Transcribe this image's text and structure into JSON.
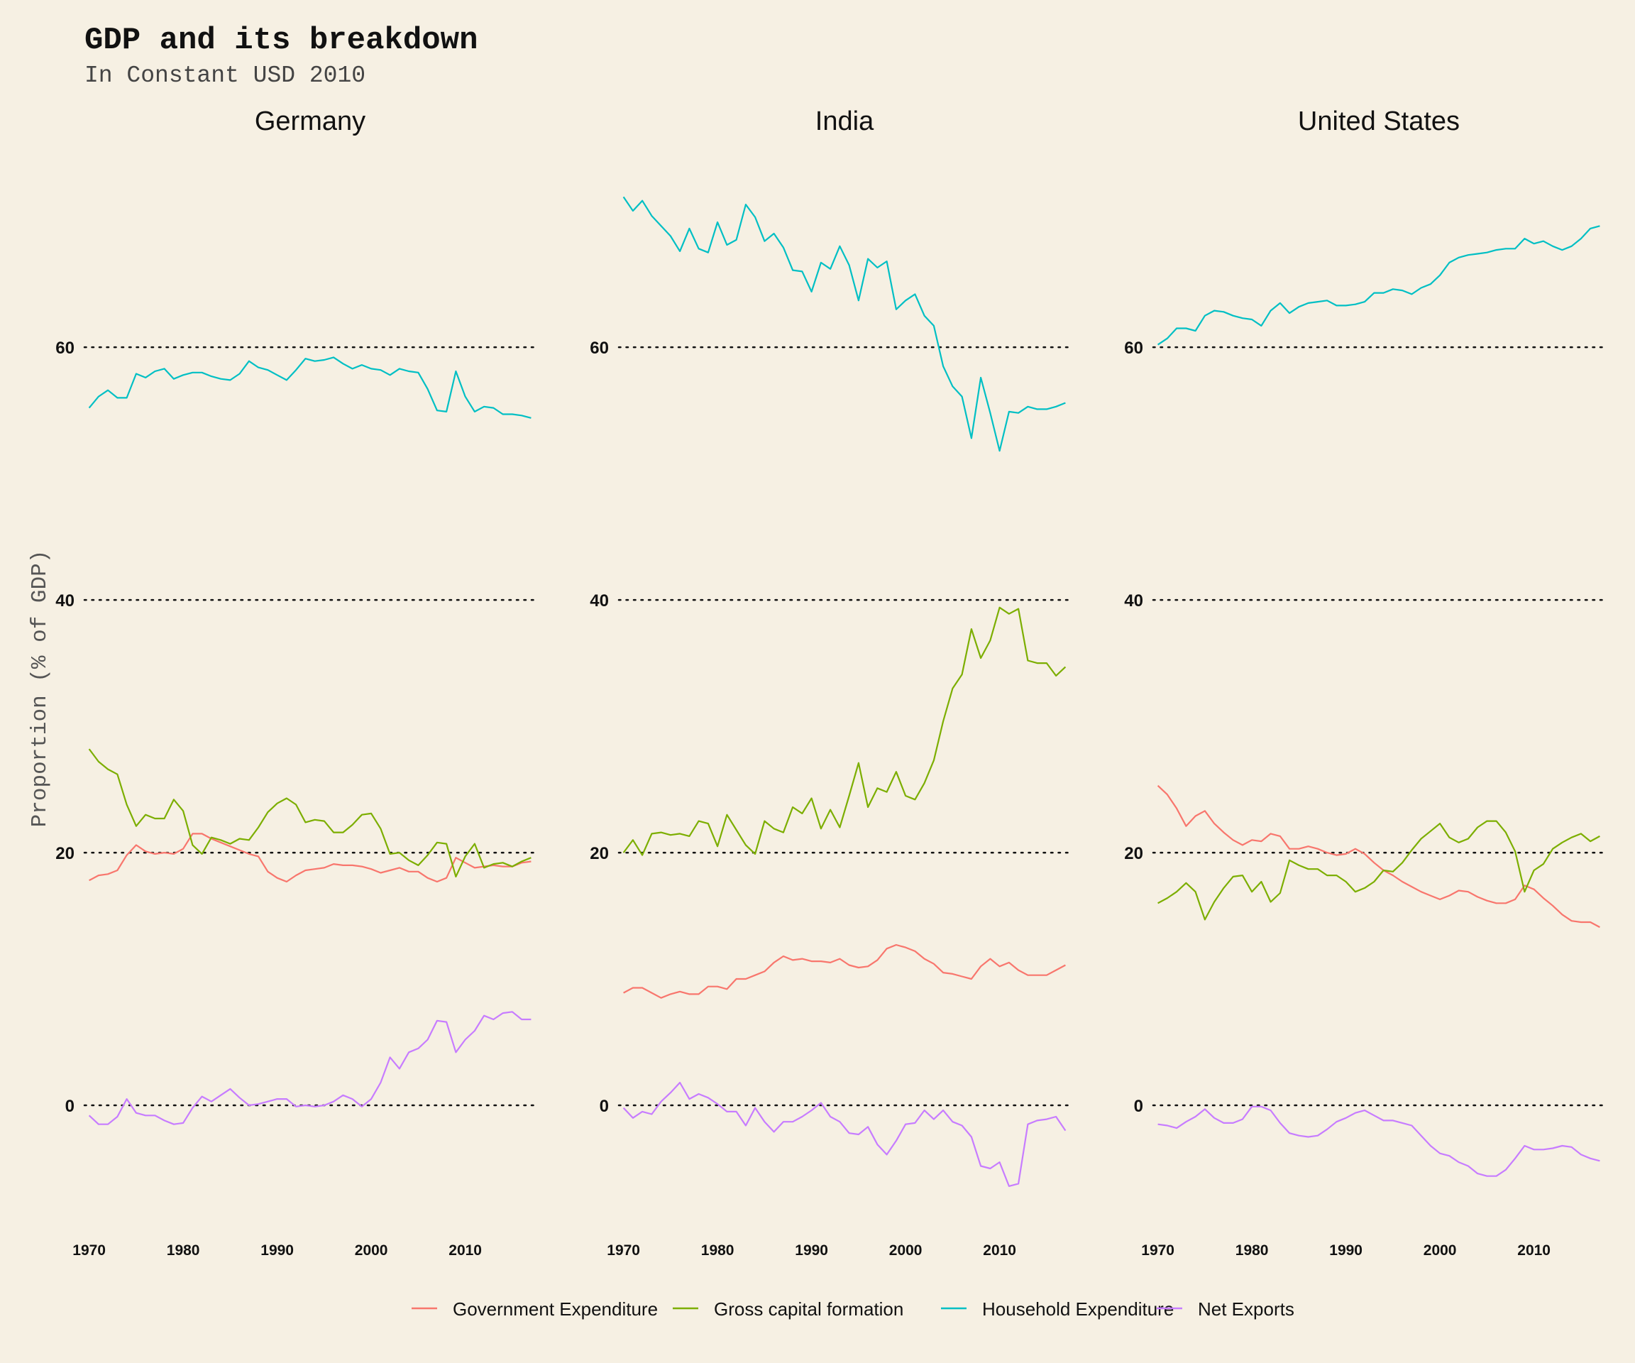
{
  "chart_data": {
    "type": "line",
    "title": "GDP and its breakdown",
    "subtitle": "In Constant USD 2010",
    "ylabel": "Proportion (% of GDP)",
    "xlabel": "",
    "ylim": [
      -10,
      74
    ],
    "xlim": [
      1969.5,
      2017.5
    ],
    "yticks": [
      0,
      20,
      40,
      60
    ],
    "xticks": [
      1970,
      1980,
      1990,
      2000,
      2010
    ],
    "grid": "dotted horizontal at y ticks",
    "legend_position": "bottom",
    "x": [
      1970,
      1971,
      1972,
      1973,
      1974,
      1975,
      1976,
      1977,
      1978,
      1979,
      1980,
      1981,
      1982,
      1983,
      1984,
      1985,
      1986,
      1987,
      1988,
      1989,
      1990,
      1991,
      1992,
      1993,
      1994,
      1995,
      1996,
      1997,
      1998,
      1999,
      2000,
      2001,
      2002,
      2003,
      2004,
      2005,
      2006,
      2007,
      2008,
      2009,
      2010,
      2011,
      2012,
      2013,
      2014,
      2015,
      2016,
      2017
    ],
    "colors": {
      "Government Expenditure": "#f8766d",
      "Gross capital formation": "#7cae00",
      "Household Expenditure": "#00bfc4",
      "Net Exports": "#c77cff"
    },
    "legend": [
      "Government Expenditure",
      "Gross capital formation",
      "Household Expenditure",
      "Net Exports"
    ],
    "panels": [
      {
        "title": "Germany",
        "series": [
          {
            "name": "Government Expenditure",
            "values": [
              17.8,
              18.2,
              18.3,
              18.6,
              19.8,
              20.6,
              20.1,
              19.9,
              20.0,
              19.9,
              20.3,
              21.5,
              21.5,
              21.1,
              20.8,
              20.5,
              20.2,
              19.9,
              19.7,
              18.5,
              18.0,
              17.7,
              18.2,
              18.6,
              18.7,
              18.8,
              19.1,
              19.0,
              19.0,
              18.9,
              18.7,
              18.4,
              18.6,
              18.8,
              18.5,
              18.5,
              18.0,
              17.7,
              18.0,
              19.6,
              19.2,
              18.8,
              18.9,
              19.0,
              18.9,
              18.9,
              19.2,
              19.3
            ]
          },
          {
            "name": "Gross capital formation",
            "values": [
              28.2,
              27.2,
              26.6,
              26.2,
              23.8,
              22.1,
              23.0,
              22.7,
              22.7,
              24.2,
              23.3,
              20.6,
              19.9,
              21.2,
              21.0,
              20.7,
              21.1,
              21.0,
              22.0,
              23.2,
              23.9,
              24.3,
              23.8,
              22.4,
              22.6,
              22.5,
              21.6,
              21.6,
              22.2,
              23.0,
              23.1,
              21.9,
              19.9,
              20.0,
              19.4,
              19.0,
              19.8,
              20.8,
              20.7,
              18.1,
              19.7,
              20.7,
              18.8,
              19.1,
              19.2,
              18.9,
              19.3,
              19.6
            ]
          },
          {
            "name": "Household Expenditure",
            "values": [
              55.2,
              56.1,
              56.6,
              56.0,
              56.0,
              57.9,
              57.6,
              58.1,
              58.3,
              57.5,
              57.8,
              58.0,
              58.0,
              57.7,
              57.5,
              57.4,
              57.9,
              58.9,
              58.4,
              58.2,
              57.8,
              57.4,
              58.2,
              59.1,
              58.9,
              59.0,
              59.2,
              58.7,
              58.3,
              58.6,
              58.3,
              58.2,
              57.8,
              58.3,
              58.1,
              58.0,
              56.7,
              55.0,
              54.9,
              58.1,
              56.1,
              54.9,
              55.3,
              55.2,
              54.7,
              54.7,
              54.6,
              54.4
            ]
          },
          {
            "name": "Net Exports",
            "values": [
              -0.8,
              -1.5,
              -1.5,
              -0.9,
              0.5,
              -0.6,
              -0.8,
              -0.8,
              -1.2,
              -1.5,
              -1.4,
              -0.2,
              0.7,
              0.3,
              0.8,
              1.3,
              0.6,
              0.0,
              0.1,
              0.3,
              0.5,
              0.5,
              -0.1,
              0.0,
              -0.1,
              0.0,
              0.3,
              0.8,
              0.5,
              -0.1,
              0.5,
              1.8,
              3.8,
              2.9,
              4.2,
              4.5,
              5.2,
              6.7,
              6.6,
              4.2,
              5.2,
              5.9,
              7.1,
              6.8,
              7.3,
              7.4,
              6.8,
              6.8
            ]
          }
        ]
      },
      {
        "title": "India",
        "series": [
          {
            "name": "Government Expenditure",
            "values": [
              8.9,
              9.3,
              9.3,
              8.9,
              8.5,
              8.8,
              9.0,
              8.8,
              8.8,
              9.4,
              9.4,
              9.2,
              10.0,
              10.0,
              10.3,
              10.6,
              11.3,
              11.8,
              11.5,
              11.6,
              11.4,
              11.4,
              11.3,
              11.6,
              11.1,
              10.9,
              11.0,
              11.5,
              12.4,
              12.7,
              12.5,
              12.2,
              11.6,
              11.2,
              10.5,
              10.4,
              10.2,
              10.0,
              11.0,
              11.6,
              11.0,
              11.3,
              10.7,
              10.3,
              10.3,
              10.3,
              10.7,
              11.1
            ]
          },
          {
            "name": "Gross capital formation",
            "values": [
              20.0,
              21.0,
              19.8,
              21.5,
              21.6,
              21.4,
              21.5,
              21.3,
              22.5,
              22.3,
              20.5,
              23.0,
              21.8,
              20.6,
              19.9,
              22.5,
              21.9,
              21.6,
              23.6,
              23.1,
              24.3,
              21.9,
              23.4,
              22.0,
              24.5,
              27.1,
              23.6,
              25.1,
              24.8,
              26.4,
              24.5,
              24.2,
              25.5,
              27.3,
              30.4,
              33.0,
              34.1,
              37.7,
              35.4,
              36.8,
              39.4,
              38.9,
              39.3,
              35.2,
              35.0,
              35.0,
              34.0,
              34.7
            ]
          },
          {
            "name": "Household Expenditure",
            "values": [
              71.9,
              70.8,
              71.6,
              70.4,
              69.6,
              68.8,
              67.6,
              69.4,
              67.8,
              67.5,
              69.9,
              68.1,
              68.5,
              71.3,
              70.3,
              68.4,
              69.0,
              67.9,
              66.1,
              66.0,
              64.4,
              66.7,
              66.2,
              68.0,
              66.5,
              63.7,
              67.0,
              66.3,
              66.8,
              63.0,
              63.7,
              64.2,
              62.5,
              61.7,
              58.5,
              56.9,
              56.1,
              52.8,
              57.6,
              54.8,
              51.8,
              54.9,
              54.8,
              55.3,
              55.1,
              55.1,
              55.3,
              55.6
            ]
          },
          {
            "name": "Net Exports",
            "values": [
              -0.2,
              -1.0,
              -0.5,
              -0.7,
              0.3,
              1.0,
              1.8,
              0.5,
              0.9,
              0.6,
              0.1,
              -0.5,
              -0.5,
              -1.6,
              -0.2,
              -1.3,
              -2.1,
              -1.3,
              -1.3,
              -0.9,
              -0.4,
              0.2,
              -0.9,
              -1.3,
              -2.2,
              -2.3,
              -1.7,
              -3.1,
              -3.9,
              -2.8,
              -1.5,
              -1.4,
              -0.4,
              -1.1,
              -0.4,
              -1.3,
              -1.6,
              -2.5,
              -4.8,
              -5.0,
              -4.5,
              -6.4,
              -6.2,
              -1.5,
              -1.2,
              -1.1,
              -0.9,
              -2.0
            ]
          }
        ]
      },
      {
        "title": "United States",
        "series": [
          {
            "name": "Government Expenditure",
            "values": [
              25.3,
              24.6,
              23.5,
              22.1,
              22.9,
              23.3,
              22.3,
              21.6,
              21.0,
              20.6,
              21.0,
              20.9,
              21.5,
              21.3,
              20.3,
              20.3,
              20.5,
              20.3,
              20.0,
              19.8,
              19.9,
              20.3,
              19.9,
              19.2,
              18.6,
              18.2,
              17.7,
              17.3,
              16.9,
              16.6,
              16.3,
              16.6,
              17.0,
              16.9,
              16.5,
              16.2,
              16.0,
              16.0,
              16.3,
              17.4,
              17.1,
              16.4,
              15.8,
              15.1,
              14.6,
              14.5,
              14.5,
              14.1
            ]
          },
          {
            "name": "Gross capital formation",
            "values": [
              16.0,
              16.4,
              16.9,
              17.6,
              16.9,
              14.7,
              16.1,
              17.2,
              18.1,
              18.2,
              16.9,
              17.7,
              16.1,
              16.8,
              19.4,
              19.0,
              18.7,
              18.7,
              18.2,
              18.2,
              17.7,
              16.9,
              17.2,
              17.7,
              18.6,
              18.5,
              19.2,
              20.2,
              21.1,
              21.7,
              22.3,
              21.2,
              20.8,
              21.1,
              22.0,
              22.5,
              22.5,
              21.6,
              20.1,
              16.9,
              18.6,
              19.1,
              20.3,
              20.8,
              21.2,
              21.5,
              20.9,
              21.3
            ]
          },
          {
            "name": "Household Expenditure",
            "values": [
              60.2,
              60.7,
              61.5,
              61.5,
              61.3,
              62.5,
              62.9,
              62.8,
              62.5,
              62.3,
              62.2,
              61.7,
              62.9,
              63.5,
              62.7,
              63.2,
              63.5,
              63.6,
              63.7,
              63.3,
              63.3,
              63.4,
              63.6,
              64.3,
              64.3,
              64.6,
              64.5,
              64.2,
              64.7,
              65.0,
              65.7,
              66.7,
              67.1,
              67.3,
              67.4,
              67.5,
              67.7,
              67.8,
              67.8,
              68.6,
              68.2,
              68.4,
              68.0,
              67.7,
              68.0,
              68.6,
              69.4,
              69.6
            ]
          },
          {
            "name": "Net Exports",
            "values": [
              -1.5,
              -1.6,
              -1.8,
              -1.3,
              -0.9,
              -0.3,
              -1.0,
              -1.4,
              -1.4,
              -1.1,
              -0.1,
              -0.1,
              -0.4,
              -1.4,
              -2.2,
              -2.4,
              -2.5,
              -2.4,
              -1.9,
              -1.3,
              -1.0,
              -0.6,
              -0.4,
              -0.8,
              -1.2,
              -1.2,
              -1.4,
              -1.6,
              -2.4,
              -3.2,
              -3.8,
              -4.0,
              -4.5,
              -4.8,
              -5.4,
              -5.6,
              -5.6,
              -5.1,
              -4.2,
              -3.2,
              -3.5,
              -3.5,
              -3.4,
              -3.2,
              -3.3,
              -3.9,
              -4.2,
              -4.4
            ]
          }
        ]
      }
    ]
  }
}
